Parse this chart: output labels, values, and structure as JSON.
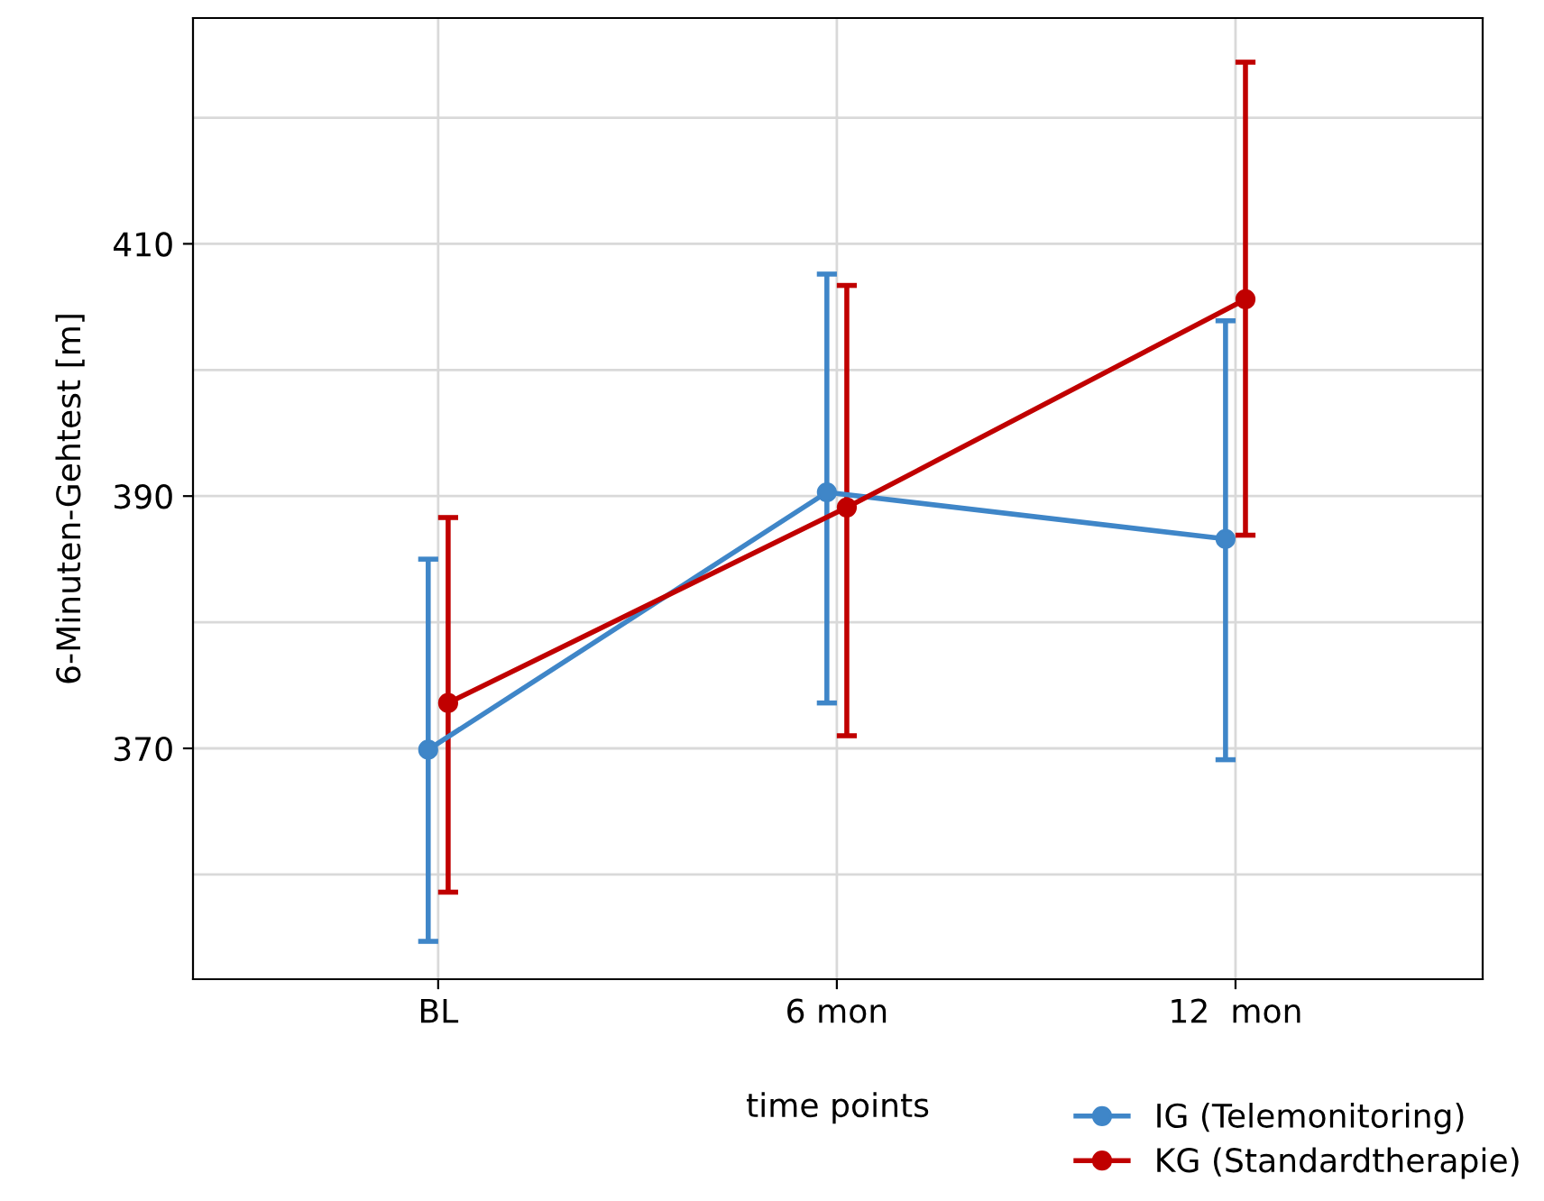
{
  "chart_data": {
    "type": "line",
    "xlabel": "time points",
    "ylabel": "6-Minuten-Gehtest [m]",
    "categories": [
      "BL",
      "6 mon",
      "12  mon"
    ],
    "series": [
      {
        "name": "IG (Telemonitoring)",
        "color": "#3f86c8",
        "values": [
          369.9,
          390.3,
          386.6
        ],
        "errors": [
          [
            354.7,
            385.0
          ],
          [
            373.6,
            407.6
          ],
          [
            369.1,
            403.9
          ]
        ]
      },
      {
        "name": "KG (Standardtherapie)",
        "color": "#c00000",
        "values": [
          373.6,
          389.1,
          405.6
        ],
        "errors": [
          [
            358.6,
            388.3
          ],
          [
            371.0,
            406.7
          ],
          [
            386.9,
            424.4
          ]
        ]
      }
    ],
    "ylim": [
      351.7,
      427.9
    ],
    "yticks": [
      {
        "value": 360,
        "label": null
      },
      370,
      {
        "value": 380,
        "label": null
      },
      390,
      {
        "value": 400,
        "label": null
      },
      410,
      {
        "value": 420,
        "label": null
      }
    ],
    "grid": true,
    "legend": "bottom right",
    "marker": "circle",
    "line_style": "solid"
  }
}
